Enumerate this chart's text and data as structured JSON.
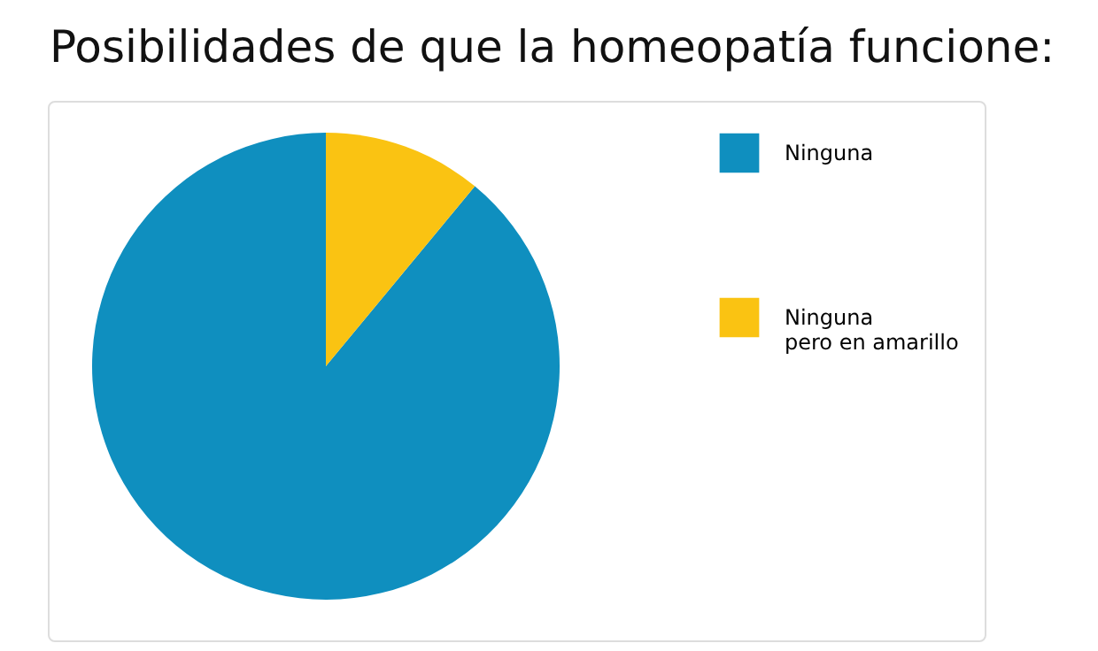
{
  "chart_data": {
    "type": "pie",
    "title": "Posibilidades de que la homeopatía funcione:",
    "categories": [
      "Ninguna",
      "Ninguna pero en amarillo"
    ],
    "values": [
      89,
      11
    ],
    "colors": [
      "#0f8fbf",
      "#fac312"
    ],
    "legend": "right"
  }
}
